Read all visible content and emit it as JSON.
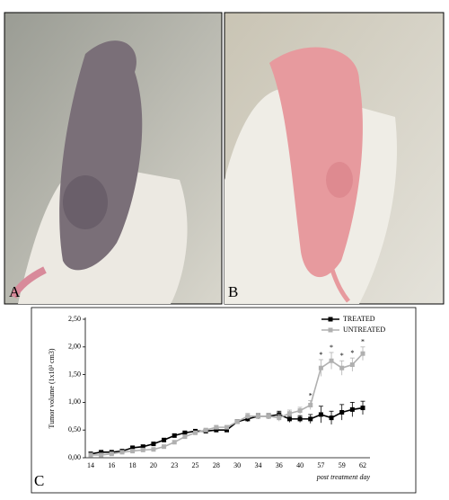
{
  "panels": {
    "a": "A",
    "b": "B",
    "c": "C"
  },
  "chart_data": {
    "type": "line",
    "ylabel": "Tumor volume (1x10³ cm3)",
    "xlabel": "post treatment day",
    "categories": [
      "14",
      null,
      "16",
      null,
      "18",
      null,
      "20",
      null,
      "23",
      null,
      "25",
      null,
      "28",
      null,
      "30",
      null,
      "34",
      null,
      "36",
      null,
      "40",
      null,
      "57",
      null,
      "59",
      null,
      "62"
    ],
    "ylim": [
      0,
      2.5
    ],
    "yticks": [
      {
        "value": 0,
        "label": "0,00"
      },
      {
        "value": 0.5,
        "label": "0,50"
      },
      {
        "value": 1,
        "label": "1,00"
      },
      {
        "value": 1.5,
        "label": "1,50"
      },
      {
        "value": 2,
        "label": "2,00"
      },
      {
        "value": 2.5,
        "label": "2,50"
      }
    ],
    "legend": "top-right",
    "series": [
      {
        "name": "TREATED",
        "color": "#000000",
        "marker": "square",
        "values": [
          0.07,
          0.1,
          0.1,
          0.12,
          0.18,
          0.2,
          0.25,
          0.32,
          0.4,
          0.45,
          0.48,
          0.48,
          0.5,
          0.5,
          0.65,
          0.7,
          0.75,
          0.75,
          0.78,
          0.7,
          0.7,
          0.7,
          0.78,
          0.72,
          0.82,
          0.87,
          0.9
        ],
        "errors": [
          0.02,
          0.02,
          0.02,
          0.02,
          0.02,
          0.03,
          0.03,
          0.03,
          0.03,
          0.03,
          0.03,
          0.03,
          0.03,
          0.03,
          0.04,
          0.05,
          0.05,
          0.05,
          0.06,
          0.06,
          0.06,
          0.08,
          0.15,
          0.12,
          0.14,
          0.13,
          0.12
        ]
      },
      {
        "name": "UNTREATED",
        "color": "#b0b0b0",
        "marker": "square",
        "values": [
          0.05,
          0.05,
          0.07,
          0.1,
          0.12,
          0.14,
          0.15,
          0.2,
          0.28,
          0.38,
          0.45,
          0.5,
          0.55,
          0.55,
          0.65,
          0.75,
          0.75,
          0.75,
          0.72,
          0.8,
          0.85,
          0.95,
          1.62,
          1.75,
          1.62,
          1.68,
          1.88
        ],
        "errors": [
          0.02,
          0.02,
          0.02,
          0.02,
          0.02,
          0.02,
          0.03,
          0.03,
          0.03,
          0.03,
          0.03,
          0.03,
          0.03,
          0.03,
          0.04,
          0.05,
          0.05,
          0.05,
          0.06,
          0.06,
          0.06,
          0.08,
          0.15,
          0.15,
          0.13,
          0.12,
          0.12
        ]
      }
    ],
    "annotations": [
      {
        "text": "*",
        "at": 21
      },
      {
        "text": "*",
        "at": 22
      },
      {
        "text": "*",
        "at": 23
      },
      {
        "text": "*",
        "at": 24
      },
      {
        "text": "*",
        "at": 25
      },
      {
        "text": "*",
        "at": 26
      }
    ]
  }
}
